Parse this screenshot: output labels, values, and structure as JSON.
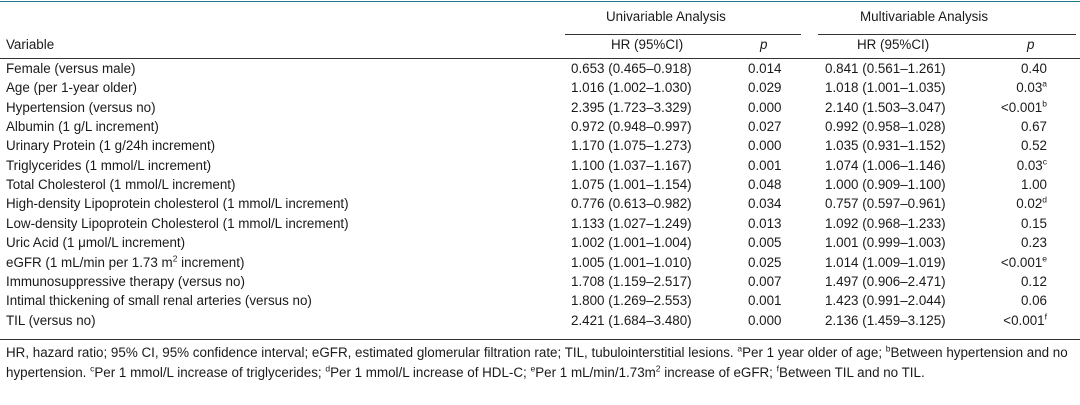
{
  "header": {
    "variable": "Variable",
    "univariable": "Univariable Analysis",
    "multivariable": "Multivariable Analysis",
    "hr_label": "HR (95%CI)",
    "p_label": "p"
  },
  "rows": [
    {
      "variable": "Female (versus male)",
      "uhr": "0.653 (0.465–0.918)",
      "up": "0.014",
      "mhr": "0.841 (0.561–1.261)",
      "mp": "0.40",
      "mp_sup": ""
    },
    {
      "variable": "Age (per 1-year older)",
      "uhr": "1.016 (1.002–1.030)",
      "up": "0.029",
      "mhr": "1.018 (1.001–1.035)",
      "mp": "0.03",
      "mp_sup": "a"
    },
    {
      "variable": "Hypertension (versus no)",
      "uhr": "2.395 (1.723–3.329)",
      "up": "0.000",
      "mhr": "2.140 (1.503–3.047)",
      "mp": "<0.001",
      "mp_sup": "b"
    },
    {
      "variable": "Albumin (1 g/L increment)",
      "uhr": "0.972 (0.948–0.997)",
      "up": "0.027",
      "mhr": "0.992 (0.958–1.028)",
      "mp": "0.67",
      "mp_sup": ""
    },
    {
      "variable": "Urinary Protein (1 g/24h increment)",
      "uhr": "1.170 (1.075–1.273)",
      "up": "0.000",
      "mhr": "1.035 (0.931–1.152)",
      "mp": "0.52",
      "mp_sup": ""
    },
    {
      "variable": "Triglycerides (1 mmol/L increment)",
      "uhr": "1.100 (1.037–1.167)",
      "up": "0.001",
      "mhr": "1.074 (1.006–1.146)",
      "mp": "0.03",
      "mp_sup": "c"
    },
    {
      "variable": "Total Cholesterol (1 mmol/L increment)",
      "uhr": "1.075 (1.001–1.154)",
      "up": "0.048",
      "mhr": "1.000 (0.909–1.100)",
      "mp": "1.00",
      "mp_sup": ""
    },
    {
      "variable": "High-density Lipoprotein cholesterol (1 mmol/L increment)",
      "uhr": "0.776 (0.613–0.982)",
      "up": "0.034",
      "mhr": "0.757 (0.597–0.961)",
      "mp": "0.02",
      "mp_sup": "d"
    },
    {
      "variable": "Low-density Lipoprotein Cholesterol (1 mmol/L increment)",
      "uhr": "1.133 (1.027–1.249)",
      "up": "0.013",
      "mhr": "1.092 (0.968–1.233)",
      "mp": "0.15",
      "mp_sup": ""
    },
    {
      "variable": "Uric Acid (1 μmol/L increment)",
      "uhr": "1.002 (1.001–1.004)",
      "up": "0.005",
      "mhr": "1.001 (0.999–1.003)",
      "mp": "0.23",
      "mp_sup": ""
    },
    {
      "variable": "eGFR (1 mL/min per 1.73 m",
      "variable_sup": "2",
      "variable_tail": " increment)",
      "uhr": "1.005 (1.001–1.010)",
      "up": "0.025",
      "mhr": "1.014 (1.009–1.019)",
      "mp": "<0.001",
      "mp_sup": "e"
    },
    {
      "variable": "Immunosuppressive therapy (versus no)",
      "uhr": "1.708 (1.159–2.517)",
      "up": "0.007",
      "mhr": "1.497 (0.906–2.471)",
      "mp": "0.12",
      "mp_sup": ""
    },
    {
      "variable": "Intimal thickening of small renal arteries (versus no)",
      "uhr": "1.800 (1.269–2.553)",
      "up": "0.001",
      "mhr": "1.423 (0.991–2.044)",
      "mp": "0.06",
      "mp_sup": ""
    },
    {
      "variable": "TIL (versus no)",
      "uhr": "2.421 (1.684–3.480)",
      "up": "0.000",
      "mhr": "2.136 (1.459–3.125)",
      "mp": "<0.001",
      "mp_sup": "f"
    }
  ],
  "footnote": {
    "lead": "HR, hazard ratio; 95% CI, 95% confidence interval; eGFR, estimated glomerular filtration rate; TIL, tubulointerstitial lesions. ",
    "a_sup": "a",
    "a_text": "Per 1 year older of age; ",
    "b_sup": "b",
    "b_text": "Between hypertension and no hypertension. ",
    "c_sup": "c",
    "c_text": "Per 1 mmol/L increase of triglycerides; ",
    "d_sup": "d",
    "d_text": "Per 1 mmol/L increase of HDL-C; ",
    "e_sup": "e",
    "e_text": "Per 1 mL/min/1.73m",
    "e_unit_sup": "2",
    "e_tail": " increase of eGFR; ",
    "f_sup": "f",
    "f_text": "Between TIL and no TIL."
  }
}
